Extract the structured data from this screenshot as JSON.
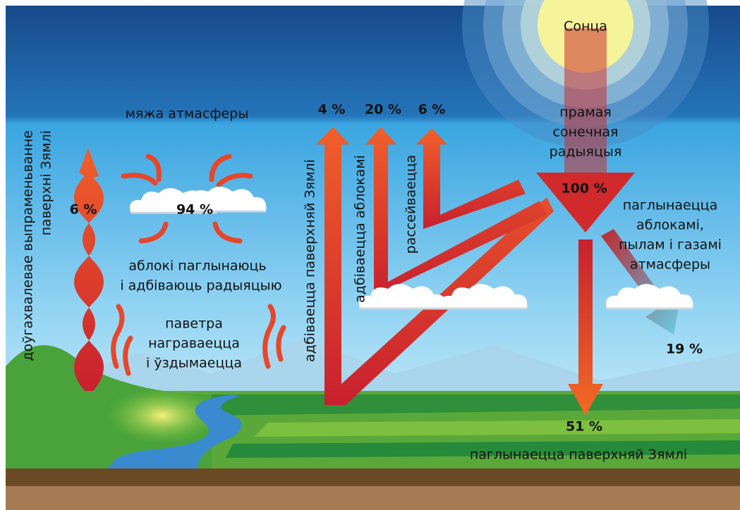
{
  "sun": "Сонца",
  "direct": {
    "lines": [
      "прамая",
      "сонечная",
      "радыяцыя"
    ],
    "percent": "100 %"
  },
  "absorbed_atmosphere": {
    "lines": [
      "паглынаецца",
      "аблокамі,",
      "пылам і газамі",
      "атмасферы"
    ],
    "percent": "19 %"
  },
  "absorbed_surface": {
    "label": "паглынаецца паверхняй Зямлі",
    "percent": "51 %"
  },
  "reflected_surface": {
    "label": "адбіваецца паверхняй Зямлі",
    "percent": "4 %"
  },
  "reflected_clouds": {
    "label": "адбіваецца аблокамі",
    "percent": "20 %"
  },
  "scattered": {
    "label": "рассейваецца",
    "percent": "6 %"
  },
  "atmosphere_edge": "мяжа атмасферы",
  "clouds": {
    "percent": "94 %",
    "lines": [
      "аблокі паглынаюць",
      "і адбіваюць радыяцыю"
    ]
  },
  "air": {
    "lines": [
      "паветра",
      "награваецца",
      "і ўздымаецца"
    ]
  },
  "longwave": {
    "percent": "6 %",
    "lines": [
      "доўгахвалевае выпраменьванне",
      "паверхні Зямлі"
    ]
  }
}
